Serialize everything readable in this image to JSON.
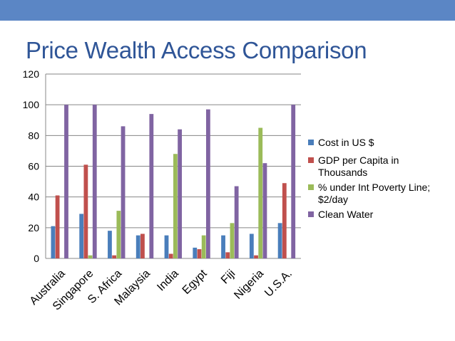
{
  "header": {
    "bar_color": "#5b86c5"
  },
  "slide_title": "Price Wealth Access Comparison",
  "legend": {
    "items": [
      {
        "label": "Cost in US $",
        "color": "#4a7ebb"
      },
      {
        "label": "GDP per Capita in Thousands",
        "color": "#c0504d"
      },
      {
        "label": "% under Int Poverty Line; $2/day",
        "color": "#9bbb59"
      },
      {
        "label": "Clean Water",
        "color": "#8064a2"
      }
    ]
  },
  "chart_data": {
    "type": "bar",
    "title": "Price Wealth Access Comparison",
    "categories": [
      "Australia",
      "Singapore",
      "S. Africa",
      "Malaysia",
      "India",
      "Egypt",
      "Fiji",
      "Nigeria",
      "U.S.A."
    ],
    "series": [
      {
        "name": "Cost in US $",
        "color": "#4a7ebb",
        "values": [
          21,
          29,
          18,
          15,
          15,
          7,
          15,
          16,
          23
        ]
      },
      {
        "name": "GDP per Capita in Thousands",
        "color": "#c0504d",
        "values": [
          41,
          61,
          2,
          16,
          3,
          6,
          4,
          2,
          49
        ]
      },
      {
        "name": "% under Int Poverty Line; $2/day",
        "color": "#9bbb59",
        "values": [
          0,
          2,
          31,
          0,
          68,
          15,
          23,
          85,
          0
        ]
      },
      {
        "name": "Clean Water",
        "color": "#8064a2",
        "values": [
          100,
          100,
          86,
          94,
          84,
          97,
          47,
          62,
          100
        ]
      }
    ],
    "y_ticks": [
      "0",
      "20",
      "40",
      "60",
      "80",
      "100",
      "120"
    ],
    "ylim": [
      0,
      120
    ],
    "xlabel": "",
    "ylabel": "",
    "grid": true,
    "legend_position": "right"
  }
}
